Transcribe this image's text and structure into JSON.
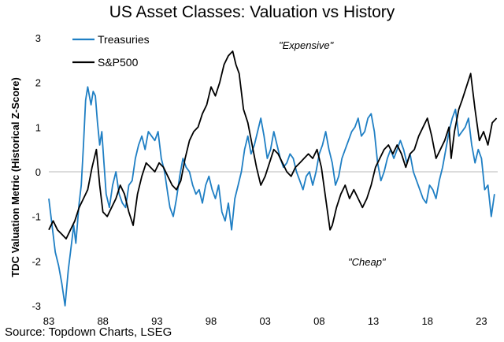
{
  "chart_data": {
    "type": "line",
    "title": "US Asset Classes: Valuation vs History",
    "xlabel": "",
    "ylabel": "TDC Valuation Metric (Historical Z-Score)",
    "xlim": [
      1983,
      2024.5
    ],
    "ylim": [
      -3,
      3
    ],
    "x_ticks": [
      "83",
      "88",
      "93",
      "98",
      "03",
      "08",
      "13",
      "18",
      "23"
    ],
    "x_tick_values": [
      1983,
      1988,
      1993,
      1998,
      2003,
      2008,
      2013,
      2018,
      2023
    ],
    "y_ticks": [
      3,
      2,
      1,
      0,
      -1,
      -2,
      -3
    ],
    "legend_position": "top-left",
    "annotations": [
      "\"Expensive\"",
      "\"Cheap\""
    ],
    "source": "Source: Topdown Charts, LSEG",
    "colors": {
      "treasuries": "#1f7fc4",
      "sp500": "#000000",
      "zero_line": "#c8c8c8"
    },
    "series": [
      {
        "name": "Treasuries",
        "color": "#1f7fc4",
        "x": [
          1983.0,
          1983.3,
          1983.6,
          1983.9,
          1984.2,
          1984.5,
          1984.8,
          1985.0,
          1985.3,
          1985.5,
          1985.8,
          1986.0,
          1986.2,
          1986.4,
          1986.6,
          1986.9,
          1987.1,
          1987.3,
          1987.5,
          1987.7,
          1987.9,
          1988.1,
          1988.3,
          1988.6,
          1988.9,
          1989.2,
          1989.5,
          1989.8,
          1990.1,
          1990.4,
          1990.7,
          1991.0,
          1991.3,
          1991.6,
          1991.9,
          1992.2,
          1992.5,
          1992.8,
          1993.1,
          1993.4,
          1993.7,
          1994.0,
          1994.2,
          1994.5,
          1994.8,
          1995.1,
          1995.4,
          1995.7,
          1996.0,
          1996.3,
          1996.6,
          1996.9,
          1997.2,
          1997.5,
          1997.8,
          1998.1,
          1998.4,
          1998.7,
          1999.0,
          1999.3,
          1999.6,
          1999.9,
          2000.2,
          2000.5,
          2000.8,
          2001.1,
          2001.4,
          2001.7,
          2002.0,
          2002.3,
          2002.6,
          2002.9,
          2003.2,
          2003.5,
          2003.8,
          2004.1,
          2004.4,
          2004.7,
          2005.0,
          2005.3,
          2005.6,
          2005.9,
          2006.2,
          2006.5,
          2006.8,
          2007.1,
          2007.4,
          2007.7,
          2008.0,
          2008.3,
          2008.6,
          2008.9,
          2009.2,
          2009.5,
          2009.8,
          2010.1,
          2010.4,
          2010.7,
          2011.0,
          2011.3,
          2011.6,
          2011.9,
          2012.2,
          2012.5,
          2012.8,
          2013.1,
          2013.4,
          2013.7,
          2014.0,
          2014.3,
          2014.6,
          2014.9,
          2015.2,
          2015.5,
          2015.8,
          2016.1,
          2016.4,
          2016.7,
          2017.0,
          2017.3,
          2017.6,
          2017.9,
          2018.2,
          2018.5,
          2018.8,
          2019.1,
          2019.4,
          2019.7,
          2020.0,
          2020.3,
          2020.6,
          2020.9,
          2021.2,
          2021.5,
          2021.8,
          2022.1,
          2022.4,
          2022.7,
          2023.0,
          2023.3,
          2023.6,
          2023.9,
          2024.2
        ],
        "values": [
          -0.6,
          -1.2,
          -1.8,
          -2.1,
          -2.5,
          -3.0,
          -2.2,
          -1.8,
          -1.2,
          -1.6,
          -0.7,
          -0.3,
          0.6,
          1.6,
          1.9,
          1.5,
          1.8,
          1.7,
          1.1,
          0.6,
          0.9,
          0.2,
          -0.5,
          -0.8,
          -0.3,
          0.0,
          -0.5,
          -0.7,
          -0.8,
          -0.3,
          -0.2,
          0.3,
          0.6,
          0.8,
          0.5,
          0.9,
          0.8,
          0.7,
          0.9,
          0.3,
          0.0,
          -0.5,
          -0.8,
          -1.0,
          -0.6,
          -0.1,
          0.3,
          0.1,
          0.0,
          -0.3,
          -0.5,
          -0.4,
          -0.7,
          -0.3,
          -0.1,
          -0.4,
          -0.6,
          -0.3,
          -0.9,
          -1.1,
          -0.7,
          -1.3,
          -0.6,
          -0.3,
          0.0,
          0.5,
          0.8,
          0.4,
          0.6,
          0.9,
          1.2,
          0.8,
          0.3,
          0.5,
          0.9,
          0.6,
          0.3,
          0.1,
          0.2,
          0.4,
          0.3,
          0.0,
          -0.2,
          -0.4,
          -0.1,
          0.0,
          -0.3,
          0.0,
          0.4,
          0.6,
          0.9,
          0.5,
          0.2,
          -0.3,
          -0.1,
          0.3,
          0.5,
          0.7,
          0.9,
          1.0,
          1.2,
          0.8,
          0.9,
          1.2,
          1.3,
          0.9,
          0.2,
          -0.2,
          0.0,
          0.3,
          0.5,
          0.3,
          0.5,
          0.7,
          0.5,
          0.2,
          0.4,
          0.0,
          -0.2,
          -0.4,
          -0.6,
          -0.7,
          -0.3,
          -0.4,
          -0.6,
          -0.2,
          0.1,
          0.5,
          0.9,
          1.2,
          1.4,
          0.8,
          0.9,
          1.0,
          1.2,
          0.6,
          0.2,
          0.5,
          0.3,
          -0.4,
          -0.3,
          -1.0,
          -0.5
        ]
      },
      {
        "name": "S&P500",
        "color": "#000000",
        "x": [
          1983.0,
          1983.4,
          1983.8,
          1984.2,
          1984.6,
          1985.0,
          1985.4,
          1985.8,
          1986.2,
          1986.6,
          1987.0,
          1987.4,
          1987.7,
          1988.0,
          1988.4,
          1988.8,
          1989.2,
          1989.6,
          1990.0,
          1990.4,
          1990.8,
          1991.2,
          1991.6,
          1992.0,
          1992.4,
          1992.8,
          1993.2,
          1993.6,
          1994.0,
          1994.4,
          1994.8,
          1995.2,
          1995.6,
          1996.0,
          1996.4,
          1996.8,
          1997.2,
          1997.6,
          1998.0,
          1998.4,
          1998.8,
          1999.2,
          1999.6,
          2000.0,
          2000.3,
          2000.6,
          2001.0,
          2001.4,
          2001.8,
          2002.2,
          2002.6,
          2003.0,
          2003.4,
          2003.8,
          2004.2,
          2004.6,
          2005.0,
          2005.4,
          2005.8,
          2006.2,
          2006.6,
          2007.0,
          2007.4,
          2007.8,
          2008.2,
          2008.6,
          2009.0,
          2009.2,
          2009.6,
          2010.0,
          2010.4,
          2010.8,
          2011.2,
          2011.6,
          2012.0,
          2012.4,
          2012.8,
          2013.2,
          2013.6,
          2014.0,
          2014.4,
          2014.8,
          2015.2,
          2015.6,
          2016.0,
          2016.4,
          2016.8,
          2017.2,
          2017.6,
          2018.0,
          2018.4,
          2018.8,
          2019.2,
          2019.6,
          2020.0,
          2020.2,
          2020.5,
          2020.9,
          2021.2,
          2021.6,
          2022.0,
          2022.4,
          2022.8,
          2023.2,
          2023.6,
          2024.0,
          2024.4
        ],
        "values": [
          -1.3,
          -1.1,
          -1.3,
          -1.4,
          -1.5,
          -1.3,
          -1.1,
          -0.8,
          -0.6,
          -0.4,
          0.1,
          0.5,
          -0.3,
          -0.9,
          -1.0,
          -0.8,
          -0.6,
          -0.3,
          -0.5,
          -0.9,
          -1.2,
          -0.5,
          -0.1,
          0.2,
          0.1,
          0.0,
          0.2,
          0.1,
          -0.1,
          -0.3,
          -0.4,
          -0.2,
          0.3,
          0.7,
          0.9,
          1.0,
          1.3,
          1.5,
          1.9,
          1.7,
          2.0,
          2.4,
          2.6,
          2.7,
          2.4,
          2.2,
          1.4,
          1.1,
          0.6,
          0.1,
          -0.3,
          -0.1,
          0.2,
          0.5,
          0.4,
          0.2,
          0.0,
          -0.1,
          0.1,
          0.2,
          0.3,
          0.4,
          0.3,
          0.5,
          0.1,
          -0.6,
          -1.3,
          -1.2,
          -0.8,
          -0.5,
          -0.3,
          -0.6,
          -0.4,
          -0.6,
          -0.8,
          -0.6,
          -0.3,
          0.1,
          0.3,
          0.5,
          0.6,
          0.4,
          0.6,
          0.4,
          0.1,
          0.4,
          0.5,
          0.8,
          1.0,
          1.2,
          0.8,
          0.3,
          0.5,
          0.7,
          1.0,
          0.3,
          0.9,
          1.4,
          1.6,
          1.9,
          2.2,
          1.4,
          0.7,
          0.9,
          0.6,
          1.1,
          1.2
        ]
      }
    ]
  }
}
